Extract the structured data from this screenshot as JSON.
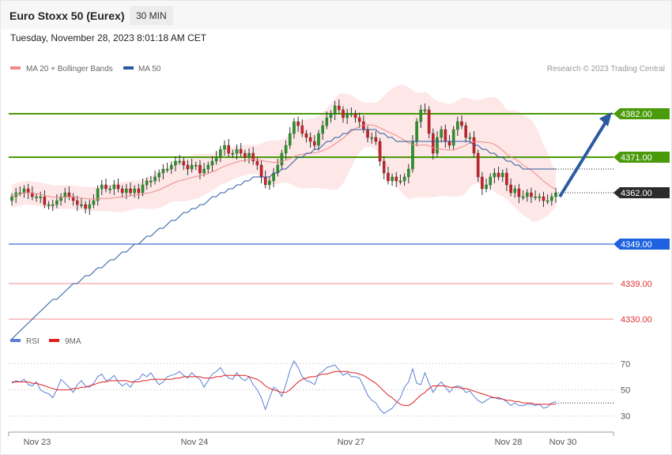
{
  "header": {
    "title": "Euro Stoxx 50 (Eurex)",
    "interval": "30 MIN",
    "timestamp": "Tuesday, November 28, 2023 8:01:18 AM CET"
  },
  "legend": {
    "items": [
      {
        "label": "MA 20 + Bollinger Bands",
        "color": "#f08a8a"
      },
      {
        "label": "MA 50",
        "color": "#2c5aa0"
      }
    ],
    "credit": "Research © 2023 Trading Central"
  },
  "chart_data": {
    "type": "candlestick",
    "x_labels": [
      "Nov 23",
      "Nov 24",
      "Nov 27",
      "Nov 28",
      "Nov 30"
    ],
    "price_range": [
      4326,
      4394
    ],
    "current_price": "4362.00",
    "levels": [
      {
        "value": 4382,
        "label": "4382.00",
        "style": "resistance"
      },
      {
        "value": 4371,
        "label": "4371.00",
        "style": "resistance"
      },
      {
        "value": 4349,
        "label": "4349.00",
        "style": "support"
      },
      {
        "value": 4339,
        "label": "4339.00",
        "style": "minor"
      },
      {
        "value": 4330,
        "label": "4330.00",
        "style": "minor"
      }
    ],
    "projection": {
      "from": 4361,
      "to": 4382
    },
    "close": [
      4361,
      4362,
      4362,
      4363,
      4362,
      4361,
      4361,
      4361,
      4359,
      4359,
      4359,
      4360,
      4361,
      4362,
      4361,
      4360,
      4359,
      4359,
      4358,
      4359,
      4360,
      4363,
      4364,
      4363,
      4363,
      4364,
      4363,
      4362,
      4363,
      4362,
      4363,
      4362,
      4364,
      4365,
      4365,
      4366,
      4367,
      4368,
      4368,
      4369,
      4370,
      4370,
      4369,
      4368,
      4369,
      4369,
      4367,
      4368,
      4369,
      4370,
      4371,
      4373,
      4374,
      4372,
      4372,
      4373,
      4372,
      4371,
      4372,
      4370,
      4369,
      4366,
      4364,
      4365,
      4367,
      4369,
      4372,
      4374,
      4377,
      4380,
      4379,
      4377,
      4376,
      4375,
      4374,
      4377,
      4379,
      4381,
      4382,
      4384,
      4383,
      4381,
      4382,
      4382,
      4381,
      4380,
      4378,
      4376,
      4376,
      4375,
      4370,
      4367,
      4365,
      4366,
      4365,
      4365,
      4366,
      4368,
      4375,
      4380,
      4383,
      4383,
      4377,
      4372,
      4376,
      4378,
      4375,
      4374,
      4378,
      4380,
      4379,
      4376,
      4376,
      4372,
      4366,
      4363,
      4364,
      4366,
      4367,
      4366,
      4367,
      4364,
      4362,
      4363,
      4361,
      4361,
      4362,
      4361,
      4361,
      4361,
      4360,
      4360,
      4361,
      4362
    ],
    "ma50": [
      4325,
      4326,
      4327,
      4328,
      4329,
      4330,
      4331,
      4332,
      4333,
      4334,
      4335,
      4335,
      4336,
      4337,
      4338,
      4339,
      4339,
      4340,
      4341,
      4341,
      4342,
      4343,
      4343,
      4344,
      4345,
      4345,
      4346,
      4347,
      4347,
      4348,
      4349,
      4349,
      4350,
      4351,
      4351,
      4352,
      4353,
      4353,
      4354,
      4355,
      4355,
      4356,
      4357,
      4357,
      4358,
      4358,
      4359,
      4359,
      4360,
      4361,
      4361,
      4362,
      4362,
      4363,
      4363,
      4364,
      4364,
      4365,
      4365,
      4366,
      4366,
      4366,
      4366,
      4366,
      4367,
      4367,
      4368,
      4368,
      4369,
      4370,
      4371,
      4371,
      4372,
      4372,
      4373,
      4373,
      4374,
      4375,
      4375,
      4376,
      4376,
      4377,
      4377,
      4378,
      4378,
      4378,
      4378,
      4378,
      4378,
      4378,
      4377,
      4377,
      4376,
      4376,
      4375,
      4375,
      4375,
      4375,
      4375,
      4375,
      4375,
      4375,
      4375,
      4375,
      4375,
      4375,
      4375,
      4375,
      4375,
      4375,
      4375,
      4375,
      4375,
      4374,
      4374,
      4373,
      4373,
      4372,
      4372,
      4371,
      4371,
      4370,
      4370,
      4369,
      4369,
      4368,
      4368,
      4368,
      4368,
      4368,
      4368,
      4368,
      4368,
      4368
    ],
    "rsi": {
      "levels": [
        "70",
        "50",
        "30"
      ],
      "series": [
        {
          "name": "RSI",
          "color": "#5b7fd6"
        },
        {
          "name": "9MA",
          "color": "#e02020"
        }
      ],
      "values": [
        55,
        57,
        56,
        58,
        54,
        53,
        56,
        50,
        48,
        47,
        44,
        50,
        58,
        55,
        52,
        48,
        54,
        57,
        53,
        52,
        55,
        60,
        62,
        57,
        58,
        61,
        56,
        53,
        55,
        52,
        57,
        58,
        62,
        60,
        63,
        58,
        54,
        56,
        60,
        61,
        62,
        64,
        61,
        59,
        63,
        60,
        58,
        52,
        57,
        62,
        64,
        67,
        62,
        59,
        58,
        63,
        59,
        57,
        60,
        54,
        50,
        44,
        35,
        44,
        52,
        50,
        45,
        54,
        65,
        72,
        67,
        60,
        57,
        56,
        54,
        62,
        64,
        67,
        68,
        69,
        65,
        61,
        63,
        60,
        60,
        59,
        53,
        46,
        42,
        40,
        35,
        32,
        34,
        36,
        40,
        44,
        52,
        56,
        66,
        55,
        54,
        63,
        55,
        48,
        53,
        56,
        52,
        48,
        52,
        53,
        52,
        48,
        49,
        45,
        42,
        40,
        42,
        44,
        44,
        43,
        43,
        41,
        38,
        40,
        38,
        38,
        39,
        39,
        38,
        39,
        36,
        37,
        40,
        41
      ],
      "ma9": [
        56,
        56,
        56,
        56,
        56,
        55,
        55,
        54,
        53,
        52,
        51,
        50,
        50,
        50,
        50,
        51,
        51,
        52,
        52,
        53,
        54,
        55,
        56,
        56,
        57,
        57,
        57,
        57,
        57,
        56,
        56,
        56,
        57,
        57,
        58,
        58,
        58,
        58,
        58,
        58,
        59,
        59,
        60,
        60,
        60,
        60,
        60,
        59,
        59,
        59,
        60,
        60,
        61,
        61,
        61,
        61,
        61,
        61,
        60,
        59,
        58,
        56,
        53,
        51,
        50,
        49,
        48,
        48,
        50,
        53,
        56,
        58,
        59,
        60,
        60,
        61,
        62,
        62,
        63,
        64,
        64,
        64,
        64,
        63,
        63,
        62,
        61,
        59,
        57,
        55,
        52,
        49,
        46,
        44,
        41,
        39,
        38,
        38,
        40,
        43,
        46,
        48,
        51,
        53,
        53,
        53,
        53,
        52,
        52,
        52,
        51,
        51,
        50,
        49,
        48,
        47,
        46,
        45,
        44,
        44,
        43,
        42,
        42,
        41,
        41,
        40,
        40,
        40,
        39,
        39,
        39,
        39,
        39,
        39
      ]
    }
  }
}
